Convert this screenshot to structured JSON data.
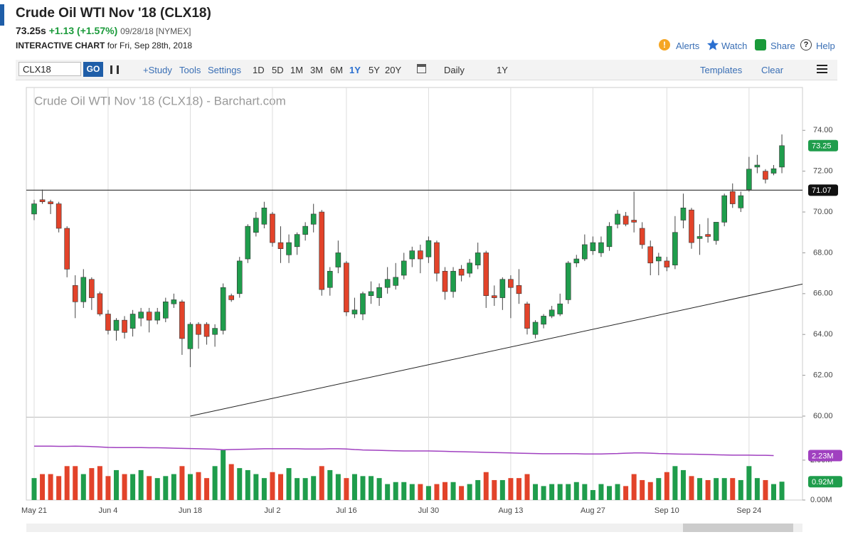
{
  "header": {
    "title": "Crude Oil WTI Nov '18 (CLX18)",
    "price": "73.25s",
    "change": "+1.13 (+1.57%)",
    "date": "09/28/18 [NYMEX]",
    "chart_label": "INTERACTIVE CHART",
    "chart_for": "for Fri, Sep 28th, 2018",
    "links": [
      "Alerts",
      "Watch",
      "Share",
      "Help"
    ]
  },
  "toolbar": {
    "symbol": "CLX18",
    "go": "GO",
    "buttons": [
      "+Study",
      "Tools",
      "Settings"
    ],
    "periods": [
      "1D",
      "5D",
      "1M",
      "3M",
      "6M",
      "1Y",
      "5Y",
      "20Y"
    ],
    "active_period": "1Y",
    "interval": "Daily",
    "range": "1Y",
    "templates": "Templates",
    "clear": "Clear"
  },
  "chart_data": {
    "type": "candlestick",
    "title": "Crude Oil WTI Nov '18 (CLX18) - Barchart.com",
    "categories": [
      "May 21",
      null,
      null,
      null,
      null,
      null,
      null,
      null,
      null,
      "Jun 4",
      null,
      null,
      null,
      null,
      null,
      null,
      null,
      null,
      null,
      "Jun 18",
      null,
      null,
      null,
      null,
      null,
      null,
      null,
      null,
      null,
      "Jul 2",
      null,
      null,
      null,
      null,
      null,
      null,
      null,
      null,
      "Jul 16",
      null,
      null,
      null,
      null,
      null,
      null,
      null,
      null,
      null,
      "Jul 30",
      null,
      null,
      null,
      null,
      null,
      null,
      null,
      null,
      null,
      "Aug 13",
      null,
      null,
      null,
      null,
      null,
      null,
      null,
      null,
      null,
      "Aug 27",
      null,
      null,
      null,
      null,
      null,
      null,
      null,
      null,
      "Sep 10",
      null,
      null,
      null,
      null,
      null,
      null,
      null,
      null,
      null,
      "Sep 24",
      null,
      null,
      null,
      null
    ],
    "open": [
      69.9,
      70.6,
      70.5,
      70.4,
      69.2,
      66.4,
      65.6,
      66.7,
      66.0,
      65.0,
      64.2,
      64.7,
      64.3,
      64.8,
      65.1,
      64.7,
      64.8,
      65.5,
      65.6,
      63.3,
      64.5,
      64.5,
      64.0,
      64.2,
      65.9,
      66.0,
      67.7,
      69.0,
      69.4,
      69.9,
      68.5,
      67.9,
      68.3,
      68.9,
      69.4,
      70.0,
      66.3,
      67.3,
      67.5,
      65.0,
      65.0,
      65.9,
      65.8,
      66.3,
      66.4,
      66.9,
      67.7,
      68.1,
      67.8,
      68.5,
      67.1,
      66.1,
      67.2,
      67.0,
      67.4,
      68.0,
      65.9,
      65.8,
      66.7,
      66.4,
      65.5,
      64.0,
      64.5,
      64.9,
      65.0,
      65.7,
      67.5,
      67.7,
      68.1,
      68.0,
      68.3,
      69.4,
      69.8,
      69.6,
      69.2,
      68.3,
      67.6,
      67.6,
      67.4,
      69.6,
      70.1,
      68.7,
      68.9,
      68.6,
      69.5,
      71.0,
      70.2,
      71.1,
      72.2,
      72.0,
      71.9,
      72.2
    ],
    "high": [
      70.6,
      71.1,
      70.6,
      70.5,
      69.3,
      66.9,
      67.2,
      66.8,
      66.1,
      65.2,
      64.8,
      64.9,
      65.2,
      65.3,
      65.3,
      65.3,
      65.8,
      66.0,
      65.7,
      64.6,
      64.6,
      64.6,
      64.5,
      66.5,
      66.0,
      67.8,
      69.4,
      70.0,
      70.5,
      70.0,
      69.3,
      68.9,
      69.0,
      69.5,
      70.4,
      70.1,
      67.3,
      68.6,
      67.6,
      65.8,
      66.1,
      66.6,
      66.5,
      67.3,
      67.5,
      68.0,
      68.3,
      68.4,
      68.8,
      68.6,
      67.3,
      67.3,
      67.4,
      67.7,
      68.5,
      68.1,
      66.4,
      66.8,
      66.9,
      67.2,
      65.6,
      64.7,
      65.0,
      65.4,
      66.0,
      67.6,
      67.9,
      68.9,
      68.8,
      68.8,
      69.5,
      70.1,
      70.0,
      71.0,
      69.5,
      68.6,
      68.0,
      67.8,
      69.8,
      70.9,
      70.2,
      69.4,
      69.7,
      69.5,
      70.9,
      71.4,
      71.0,
      72.7,
      72.8,
      72.1,
      72.3,
      73.8
    ],
    "low": [
      69.6,
      70.4,
      69.9,
      69.0,
      66.8,
      64.8,
      65.3,
      65.2,
      64.9,
      64.0,
      63.7,
      63.8,
      63.9,
      64.4,
      64.1,
      64.5,
      64.6,
      65.3,
      63.0,
      62.4,
      63.3,
      63.5,
      63.4,
      64.0,
      65.6,
      65.8,
      67.5,
      68.8,
      69.2,
      68.3,
      67.5,
      67.5,
      67.9,
      68.6,
      69.0,
      65.9,
      65.9,
      67.0,
      64.9,
      64.8,
      64.7,
      65.5,
      65.4,
      66.0,
      66.2,
      66.7,
      67.3,
      67.0,
      67.5,
      66.6,
      65.7,
      65.8,
      66.6,
      66.8,
      67.2,
      65.3,
      65.4,
      65.2,
      64.8,
      65.5,
      64.0,
      63.8,
      64.3,
      64.8,
      64.9,
      65.5,
      67.3,
      67.6,
      67.9,
      67.8,
      68.1,
      69.2,
      69.3,
      69.0,
      68.2,
      66.9,
      66.9,
      67.1,
      67.2,
      69.2,
      68.2,
      67.9,
      68.5,
      68.4,
      69.3,
      70.2,
      70.0,
      71.0,
      71.9,
      71.4,
      71.8,
      71.9
    ],
    "close": [
      70.4,
      70.5,
      70.4,
      69.2,
      67.2,
      65.6,
      66.8,
      65.8,
      65.0,
      64.2,
      64.7,
      64.1,
      65.0,
      65.1,
      64.7,
      65.1,
      65.6,
      65.7,
      63.8,
      64.5,
      64.0,
      63.9,
      64.3,
      66.3,
      65.7,
      67.6,
      69.3,
      69.7,
      70.2,
      68.5,
      68.2,
      68.5,
      68.9,
      69.3,
      69.9,
      66.2,
      67.1,
      68.0,
      65.1,
      65.2,
      66.0,
      66.1,
      66.3,
      66.7,
      66.8,
      67.6,
      68.1,
      67.7,
      68.6,
      67.0,
      66.1,
      67.1,
      66.9,
      67.5,
      68.0,
      65.9,
      65.8,
      66.7,
      66.3,
      66.0,
      64.3,
      64.6,
      64.9,
      65.2,
      65.5,
      67.5,
      67.7,
      68.4,
      68.5,
      68.5,
      69.3,
      69.9,
      69.4,
      69.5,
      68.4,
      67.5,
      67.8,
      67.3,
      69.0,
      70.2,
      68.5,
      68.8,
      68.8,
      69.5,
      70.8,
      70.4,
      70.8,
      72.1,
      72.3,
      71.6,
      72.12,
      73.25
    ],
    "up_color": "#1f9d4c",
    "down_color": "#e2432a",
    "ylim": [
      60,
      76.1
    ],
    "yticks": [
      {
        "value": 60,
        "label": "60.00"
      },
      {
        "value": 62,
        "label": "62.00"
      },
      {
        "value": 64,
        "label": "64.00"
      },
      {
        "value": 66,
        "label": "66.00"
      },
      {
        "value": 68,
        "label": "68.00"
      },
      {
        "value": 70,
        "label": "70.00"
      },
      {
        "value": 72,
        "label": "72.00"
      },
      {
        "value": 74,
        "label": "74.00"
      }
    ],
    "grid": "x",
    "hline": 71.07,
    "trendline": [
      null,
      null,
      null,
      null,
      null,
      null,
      null,
      null,
      null,
      null,
      null,
      null,
      null,
      null,
      null,
      null,
      null,
      null,
      null,
      60.0,
      null,
      null,
      null,
      null,
      null,
      null,
      null,
      null,
      null,
      null,
      null,
      null,
      null,
      null,
      null,
      null,
      null,
      null,
      null,
      null,
      null,
      null,
      null,
      null,
      null,
      null,
      null,
      null,
      null,
      null,
      null,
      null,
      null,
      null,
      null,
      null,
      null,
      null,
      null,
      null,
      null,
      null,
      null,
      null,
      null,
      null,
      null,
      null,
      null,
      null,
      null,
      null,
      null,
      null,
      null,
      null,
      null,
      null,
      null,
      null,
      null,
      null,
      null,
      null,
      null,
      null,
      null,
      null,
      null,
      null,
      null,
      66.25
    ],
    "volume": {
      "values": [
        1.1,
        1.3,
        1.3,
        1.2,
        1.7,
        1.7,
        1.3,
        1.6,
        1.7,
        1.2,
        1.5,
        1.3,
        1.3,
        1.5,
        1.2,
        1.1,
        1.2,
        1.3,
        1.7,
        1.3,
        1.4,
        1.1,
        1.7,
        2.5,
        1.8,
        1.6,
        1.5,
        1.3,
        1.1,
        1.4,
        1.3,
        1.6,
        1.1,
        1.1,
        1.2,
        1.7,
        1.5,
        1.3,
        1.1,
        1.3,
        1.2,
        1.2,
        1.1,
        0.8,
        0.9,
        0.9,
        0.8,
        0.8,
        0.7,
        0.8,
        0.9,
        0.9,
        0.7,
        0.8,
        1.0,
        1.4,
        1.0,
        1.0,
        1.1,
        1.1,
        1.3,
        0.8,
        0.7,
        0.8,
        0.8,
        0.8,
        0.9,
        0.8,
        0.5,
        0.8,
        0.7,
        0.8,
        0.7,
        1.3,
        1.0,
        0.9,
        1.1,
        1.4,
        1.7,
        1.5,
        1.2,
        1.1,
        1.0,
        1.1,
        1.1,
        1.1,
        1.0,
        1.7,
        1.1,
        1.0,
        0.8,
        0.92
      ],
      "line": [
        2.7,
        2.7,
        2.7,
        2.69,
        2.69,
        2.7,
        2.69,
        2.68,
        2.66,
        2.64,
        2.63,
        2.63,
        2.63,
        2.63,
        2.62,
        2.62,
        2.61,
        2.6,
        2.59,
        2.58,
        2.57,
        2.56,
        2.55,
        2.52,
        2.53,
        2.54,
        2.55,
        2.56,
        2.57,
        2.57,
        2.57,
        2.57,
        2.57,
        2.56,
        2.56,
        2.56,
        2.57,
        2.57,
        2.56,
        2.53,
        2.51,
        2.5,
        2.49,
        2.48,
        2.47,
        2.46,
        2.46,
        2.46,
        2.46,
        2.45,
        2.44,
        2.43,
        2.42,
        2.41,
        2.4,
        2.39,
        2.38,
        2.37,
        2.36,
        2.35,
        2.34,
        2.33,
        2.32,
        2.32,
        2.32,
        2.32,
        2.32,
        2.31,
        2.31,
        2.31,
        2.32,
        2.33,
        2.35,
        2.36,
        2.36,
        2.35,
        2.33,
        2.32,
        2.31,
        2.3,
        2.3,
        2.29,
        2.28,
        2.27,
        2.26,
        2.25,
        2.25,
        2.25,
        2.24,
        2.24,
        2.23,
        null
      ],
      "line_color": "#a040c0",
      "line_last": {
        "value": 2.23,
        "label": "2.23M"
      },
      "volume_last": {
        "value": 0.92,
        "label": "0.92M"
      },
      "ylim": [
        0,
        4.1
      ],
      "yticks": [
        {
          "value": 0,
          "label": "0.00M"
        },
        {
          "value": 2,
          "label": "2.00M"
        }
      ]
    }
  }
}
